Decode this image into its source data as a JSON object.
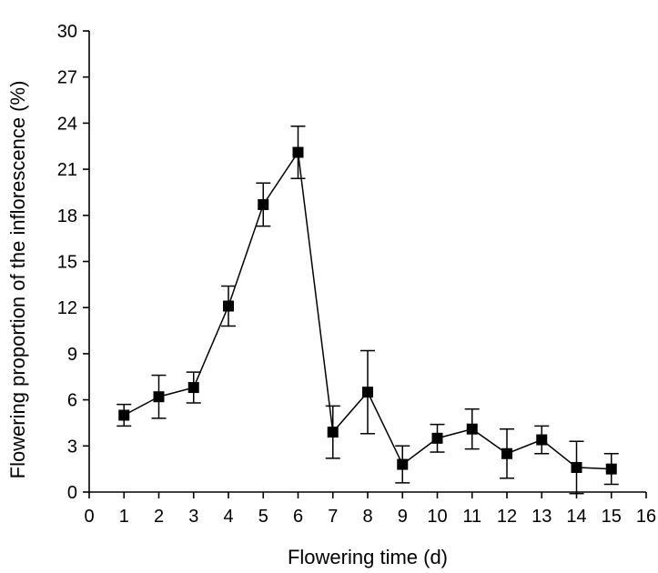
{
  "chart_data": {
    "type": "line",
    "xlabel": "Flowering time (d)",
    "ylabel": "Flowering proportion of the inflorescence (%)",
    "xlim": [
      0,
      16
    ],
    "ylim": [
      0,
      30
    ],
    "x_ticks": [
      0,
      1,
      2,
      3,
      4,
      5,
      6,
      7,
      8,
      9,
      10,
      11,
      12,
      13,
      14,
      15,
      16
    ],
    "y_ticks": [
      0,
      3,
      6,
      9,
      12,
      15,
      18,
      21,
      24,
      27,
      30
    ],
    "grid": false,
    "marker": "square",
    "series": [
      {
        "x": [
          1,
          2,
          3,
          4,
          5,
          6,
          7,
          8,
          9,
          10,
          11,
          12,
          13,
          14,
          15
        ],
        "y": [
          5.0,
          6.2,
          6.8,
          12.1,
          18.7,
          22.1,
          3.9,
          6.5,
          1.8,
          3.5,
          4.1,
          2.5,
          3.4,
          1.6,
          1.5
        ],
        "error": [
          0.7,
          1.4,
          1.0,
          1.3,
          1.4,
          1.7,
          1.7,
          2.7,
          1.2,
          0.9,
          1.3,
          1.6,
          0.9,
          1.7,
          1.0
        ]
      }
    ]
  }
}
